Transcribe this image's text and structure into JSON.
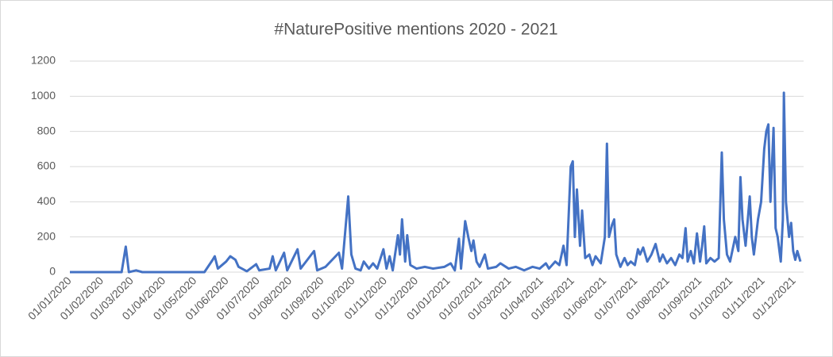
{
  "chart_data": {
    "type": "line",
    "title": "#NaturePositive mentions 2020 - 2021",
    "color": "#4472c4",
    "grid": true,
    "ylim": [
      0,
      1200
    ],
    "yticks": [
      0,
      200,
      400,
      600,
      800,
      1000,
      1200
    ],
    "xlim": [
      "01/01/2020",
      "07/12/2021"
    ],
    "xticks": [
      "01/01/2020",
      "01/02/2020",
      "01/03/2020",
      "01/04/2020",
      "01/05/2020",
      "01/06/2020",
      "01/07/2020",
      "01/08/2020",
      "01/09/2020",
      "01/10/2020",
      "01/11/2020",
      "01/12/2020",
      "01/01/2021",
      "01/02/2021",
      "01/03/2021",
      "01/04/2021",
      "01/05/2021",
      "01/06/2021",
      "01/07/2021",
      "01/08/2021",
      "01/09/2021",
      "01/10/2021",
      "01/11/2021",
      "01/12/2021"
    ],
    "x": [
      "01/01/2020",
      "20/02/2020",
      "24/02/2020",
      "27/02/2020",
      "05/03/2020",
      "11/03/2020",
      "10/05/2020",
      "18/05/2020",
      "20/05/2020",
      "23/05/2020",
      "31/05/2020",
      "04/06/2020",
      "09/06/2020",
      "12/06/2020",
      "20/06/2020",
      "29/06/2020",
      "02/07/2020",
      "12/07/2020",
      "15/07/2020",
      "18/07/2020",
      "26/07/2020",
      "29/07/2020",
      "08/08/2020",
      "11/08/2020",
      "24/08/2020",
      "27/08/2020",
      "04/09/2020",
      "17/09/2020",
      "20/09/2020",
      "26/09/2020",
      "29/09/2020",
      "03/10/2020",
      "08/10/2020",
      "11/10/2020",
      "16/10/2020",
      "20/10/2020",
      "24/10/2020",
      "30/10/2020",
      "02/11/2020",
      "05/11/2020",
      "08/11/2020",
      "13/11/2020",
      "15/11/2020",
      "17/11/2020",
      "20/11/2020",
      "22/11/2020",
      "25/11/2020",
      "01/12/2020",
      "09/12/2020",
      "17/12/2020",
      "28/12/2020",
      "03/01/2021",
      "07/01/2021",
      "11/01/2021",
      "13/01/2021",
      "17/01/2021",
      "20/01/2021",
      "23/01/2021",
      "25/01/2021",
      "28/01/2021",
      "31/01/2021",
      "05/02/2021",
      "08/02/2021",
      "16/02/2021",
      "20/02/2021",
      "28/02/2021",
      "07/03/2021",
      "15/03/2021",
      "23/03/2021",
      "30/03/2021",
      "05/04/2021",
      "08/04/2021",
      "14/04/2021",
      "18/04/2021",
      "22/04/2021",
      "25/04/2021",
      "29/04/2021",
      "01/05/2021",
      "03/05/2021",
      "05/05/2021",
      "08/05/2021",
      "10/05/2021",
      "13/05/2021",
      "17/05/2021",
      "20/05/2021",
      "23/05/2021",
      "28/05/2021",
      "01/06/2021",
      "03/06/2021",
      "05/06/2021",
      "08/06/2021",
      "10/06/2021",
      "12/06/2021",
      "16/06/2021",
      "20/06/2021",
      "23/06/2021",
      "26/06/2021",
      "30/06/2021",
      "03/07/2021",
      "05/07/2021",
      "08/07/2021",
      "12/07/2021",
      "16/07/2021",
      "20/07/2021",
      "24/07/2021",
      "27/07/2021",
      "31/07/2021",
      "04/08/2021",
      "08/08/2021",
      "12/08/2021",
      "15/08/2021",
      "18/08/2021",
      "20/08/2021",
      "23/08/2021",
      "26/08/2021",
      "29/08/2021",
      "01/09/2021",
      "03/09/2021",
      "05/09/2021",
      "07/09/2021",
      "11/09/2021",
      "15/09/2021",
      "19/09/2021",
      "22/09/2021",
      "24/09/2021",
      "27/09/2021",
      "30/09/2021",
      "05/10/2021",
      "08/10/2021",
      "10/10/2021",
      "12/10/2021",
      "15/10/2021",
      "19/10/2021",
      "21/10/2021",
      "23/10/2021",
      "27/10/2021",
      "30/10/2021",
      "02/11/2021",
      "04/11/2021",
      "06/11/2021",
      "08/11/2021",
      "11/11/2021",
      "13/11/2021",
      "15/11/2021",
      "18/11/2021",
      "20/11/2021",
      "21/11/2021",
      "23/11/2021",
      "26/11/2021",
      "28/11/2021",
      "30/11/2021",
      "02/12/2021",
      "04/12/2021",
      "07/12/2021"
    ],
    "values": [
      0,
      0,
      145,
      0,
      10,
      0,
      0,
      70,
      90,
      20,
      60,
      90,
      70,
      30,
      5,
      45,
      10,
      20,
      90,
      10,
      110,
      10,
      130,
      20,
      120,
      10,
      30,
      110,
      20,
      430,
      100,
      20,
      10,
      60,
      20,
      50,
      20,
      130,
      20,
      90,
      10,
      210,
      100,
      300,
      60,
      210,
      40,
      20,
      30,
      20,
      30,
      50,
      10,
      190,
      20,
      290,
      200,
      120,
      180,
      60,
      30,
      100,
      20,
      30,
      50,
      20,
      30,
      10,
      30,
      20,
      50,
      20,
      60,
      40,
      150,
      40,
      600,
      630,
      200,
      470,
      150,
      350,
      80,
      100,
      40,
      90,
      50,
      200,
      730,
      200,
      270,
      300,
      100,
      30,
      80,
      40,
      60,
      40,
      130,
      100,
      140,
      60,
      100,
      160,
      60,
      100,
      50,
      80,
      40,
      100,
      80,
      250,
      60,
      120,
      50,
      220,
      60,
      150,
      260,
      50,
      80,
      60,
      80,
      680,
      300,
      100,
      60,
      200,
      120,
      540,
      300,
      150,
      430,
      200,
      100,
      300,
      400,
      700,
      800,
      840,
      400,
      820,
      250,
      200,
      60,
      300,
      1020,
      400,
      200,
      280,
      120,
      70,
      120,
      60
    ]
  }
}
